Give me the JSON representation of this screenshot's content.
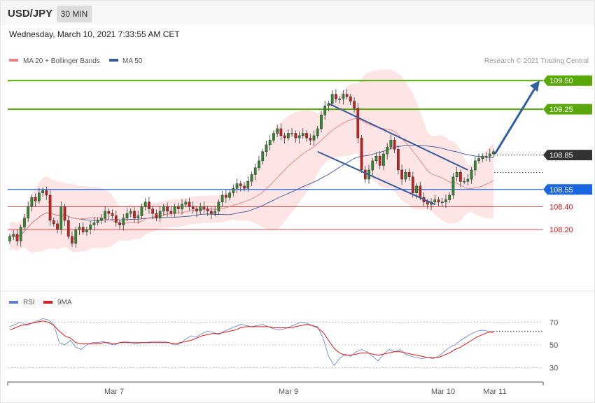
{
  "header": {
    "pair": "USD/JPY",
    "timeframe": "30 MIN",
    "timestamp": "Wednesday, March 10, 2021 7:33:55 AM CET"
  },
  "legend": {
    "ma20": "MA 20 + Bollinger Bands",
    "ma50": "MA 50",
    "rsi": "RSI",
    "ma9": "9MA",
    "credit": "Research © 2021 Trading Central"
  },
  "colors": {
    "candle_up": "#2e8b2e",
    "candle_down": "#cc1f1f",
    "bollinger_fill": "#fde0e0",
    "ma20": "#e88080",
    "ma50": "#3b5998",
    "trendline": "#3a5a9a",
    "arrow": "#2f5f9e",
    "target_level": "#5aa70a",
    "pivot_level": "#1a66e0",
    "support_level": "#d01616",
    "current_price": "#333333",
    "rsi": "#5b7fd6",
    "rsi_ma": "#e01a1a"
  },
  "chart_data": [
    {
      "type": "candlestick",
      "x_ticks": [
        "Mar 7",
        "Mar 9",
        "Mar 10",
        "Mar 11"
      ],
      "ylim": [
        107.7,
        109.55
      ],
      "levels": [
        {
          "value": 109.5,
          "label": "109.50",
          "kind": "target"
        },
        {
          "value": 109.25,
          "label": "109.25",
          "kind": "target"
        },
        {
          "value": 108.85,
          "label": "108.85",
          "kind": "current"
        },
        {
          "value": 108.55,
          "label": "108.55",
          "kind": "pivot"
        },
        {
          "value": 108.4,
          "label": "108.40",
          "kind": "support"
        },
        {
          "value": 108.2,
          "label": "108.20",
          "kind": "support"
        }
      ],
      "close_series": [
        108.14,
        108.16,
        108.1,
        108.22,
        108.3,
        108.4,
        108.48,
        108.45,
        108.52,
        108.54,
        108.5,
        108.28,
        108.25,
        108.2,
        108.4,
        108.28,
        108.14,
        108.08,
        108.2,
        108.22,
        108.18,
        108.2,
        108.24,
        108.26,
        108.28,
        108.3,
        108.36,
        108.34,
        108.32,
        108.26,
        108.24,
        108.3,
        108.34,
        108.36,
        108.3,
        108.32,
        108.4,
        108.44,
        108.38,
        108.34,
        108.3,
        108.36,
        108.4,
        108.36,
        108.34,
        108.4,
        108.38,
        108.42,
        108.44,
        108.4,
        108.38,
        108.36,
        108.4,
        108.38,
        108.36,
        108.34,
        108.36,
        108.44,
        108.5,
        108.48,
        108.52,
        108.56,
        108.6,
        108.58,
        108.56,
        108.62,
        108.68,
        108.74,
        108.8,
        108.88,
        108.94,
        108.98,
        109.04,
        109.08,
        109.02,
        109.0,
        109.04,
        109.04,
        109.0,
        109.02,
        109.04,
        109.0,
        108.98,
        109.02,
        109.08,
        109.2,
        109.28,
        109.3,
        109.38,
        109.34,
        109.34,
        109.38,
        109.36,
        109.32,
        109.26,
        109.0,
        108.72,
        108.64,
        108.72,
        108.8,
        108.84,
        108.76,
        108.86,
        108.92,
        108.98,
        108.9,
        108.72,
        108.64,
        108.7,
        108.66,
        108.52,
        108.58,
        108.48,
        108.44,
        108.42,
        108.44,
        108.46,
        108.44,
        108.44,
        108.46,
        108.5,
        108.66,
        108.7,
        108.62,
        108.62,
        108.64,
        108.72,
        108.8,
        108.82,
        108.84,
        108.84,
        108.86,
        108.88
      ]
    },
    {
      "type": "line",
      "title": "RSI",
      "yticks": [
        30,
        50,
        70
      ],
      "ylim": [
        20,
        80
      ],
      "series": [
        {
          "name": "RSI",
          "values": [
            66,
            68,
            70,
            67,
            69,
            71,
            73,
            72,
            68,
            52,
            50,
            54,
            48,
            46,
            50,
            52,
            52,
            53,
            51,
            50,
            52,
            53,
            52,
            51,
            52,
            52,
            53,
            53,
            53,
            52,
            50,
            51,
            55,
            58,
            57,
            60,
            62,
            61,
            59,
            62,
            64,
            66,
            68,
            67,
            66,
            67,
            68,
            66,
            64,
            63,
            64,
            66,
            68,
            70,
            69,
            67,
            66,
            56,
            40,
            32,
            38,
            42,
            40,
            44,
            46,
            44,
            40,
            36,
            42,
            46,
            44,
            46,
            42,
            40,
            39,
            38,
            39,
            38,
            40,
            44,
            48,
            50,
            54,
            57,
            60,
            62,
            63,
            62,
            62
          ]
        },
        {
          "name": "9MA",
          "values": [
            63,
            65,
            67,
            68,
            69,
            70,
            71,
            70,
            67,
            62,
            58,
            56,
            52,
            51,
            51,
            51,
            51,
            52,
            52,
            51,
            52,
            52,
            52,
            52,
            52,
            52,
            52,
            52,
            52,
            52,
            51,
            52,
            53,
            54,
            56,
            58,
            59,
            60,
            60,
            61,
            62,
            63,
            65,
            66,
            66,
            66,
            66,
            66,
            65,
            65,
            65,
            65,
            66,
            67,
            68,
            67,
            65,
            61,
            54,
            47,
            43,
            41,
            41,
            42,
            43,
            43,
            42,
            41,
            42,
            43,
            44,
            44,
            43,
            42,
            41,
            40,
            39,
            39,
            39,
            41,
            43,
            46,
            48,
            51,
            54,
            57,
            59,
            61,
            61
          ]
        }
      ]
    }
  ]
}
